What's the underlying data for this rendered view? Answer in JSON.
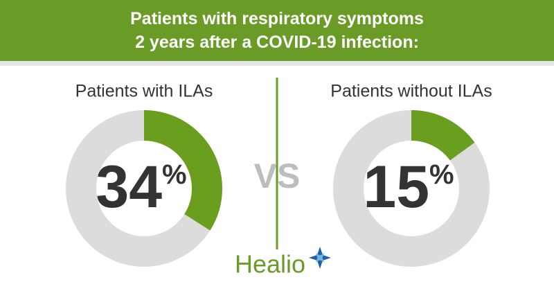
{
  "title": "Patients with respiratory symptoms\n2 years after a COVID-19 infection:",
  "vs": "VS",
  "brand": "Healio",
  "chart_data": [
    {
      "type": "donut",
      "title": "Patients with ILAs",
      "values": [
        34
      ],
      "value_labels": [
        "34%"
      ],
      "color": "#6a9e1f",
      "track_color": "#dcdcdc"
    },
    {
      "type": "donut",
      "title": "Patients without ILAs",
      "values": [
        15
      ],
      "value_labels": [
        "15%"
      ],
      "color": "#6a9e1f",
      "track_color": "#dcdcdc"
    }
  ]
}
